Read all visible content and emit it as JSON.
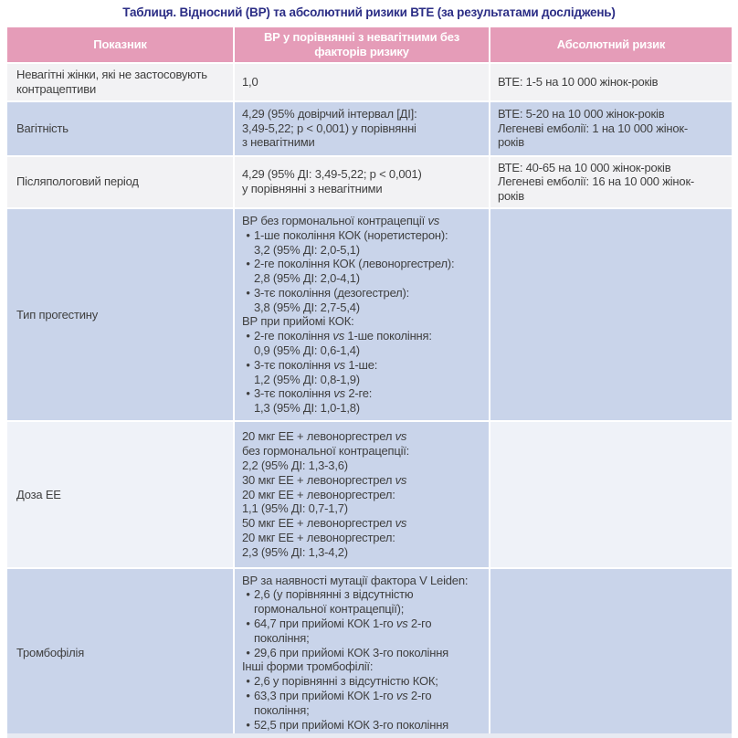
{
  "title": "Таблиця. Відносний (ВР) та абсолютний ризики ВТЕ (за результатами досліджень)",
  "colors": {
    "header_bg": "#e59cb8",
    "header_text": "#ffffff",
    "row_blue": "#c9d4ea",
    "row_light": "#f2f2f4",
    "row_light_cool": "#eff2f8",
    "title_text": "#2b2d85",
    "body_text": "#3f3f3f",
    "strip": "#e7eaf2"
  },
  "table": {
    "header": {
      "col1": "Показник",
      "col2": "ВР у порівнянні з невагітними без факторів ризику",
      "col3": "Абсолютний ризик"
    },
    "rows": [
      {
        "shade": "light",
        "indicator_lines": [
          "Невагітні жінки, які не застосовують",
          "контрацептиви"
        ],
        "relative": [
          {
            "bullet": false,
            "lines": [
              "1,0"
            ]
          }
        ],
        "absolute_lines": [
          "ВТЕ: 1-5 на 10 000 жінок-років"
        ]
      },
      {
        "shade": "blue",
        "indicator_lines": [
          "Вагітність"
        ],
        "relative": [
          {
            "bullet": false,
            "lines": [
              "4,29 (95% довірчий інтервал [ДІ]:",
              "3,49-5,22; p < 0,001) у порівнянні",
              "з невагітними"
            ]
          }
        ],
        "absolute_lines": [
          "ВТЕ: 5-20 на 10 000 жінок-років",
          "Легеневі емболії: 1 на 10 000 жінок-",
          "років"
        ]
      },
      {
        "shade": "light",
        "indicator_lines": [
          "Післяпологовий період"
        ],
        "relative": [
          {
            "bullet": false,
            "lines": [
              "4,29 (95% ДІ: 3,49-5,22; p < 0,001)",
              "у порівнянні з невагітними"
            ]
          }
        ],
        "absolute_lines": [
          "ВТЕ: 40-65 на 10 000 жінок-років",
          "Легеневі емболії: 16 на 10 000 жінок-",
          "років"
        ]
      },
      {
        "shade": "blue",
        "indicator_lines": [
          "Тип прогестину"
        ],
        "relative": [
          {
            "bullet": false,
            "lines": [
              "ВР без гормональної контрацепції vs"
            ]
          },
          {
            "bullet": true,
            "lines": [
              "1-ше покоління КОК (норетистерон):",
              "3,2 (95% ДІ: 2,0-5,1)"
            ]
          },
          {
            "bullet": true,
            "lines": [
              "2-ге покоління КОК (левоноргестрел):",
              "2,8 (95% ДІ: 2,0-4,1)"
            ]
          },
          {
            "bullet": true,
            "lines": [
              "3-тє покоління (дезогестрел):",
              "3,8 (95% ДІ: 2,7-5,4)"
            ]
          },
          {
            "bullet": false,
            "lines": [
              "ВР при прийомі КОК:"
            ]
          },
          {
            "bullet": true,
            "lines": [
              "2-ге покоління vs 1-ше покоління:",
              "0,9 (95% ДІ: 0,6-1,4)"
            ]
          },
          {
            "bullet": true,
            "lines": [
              "3-тє покоління vs 1-ше:",
              "1,2 (95% ДІ: 0,8-1,9)"
            ]
          },
          {
            "bullet": true,
            "lines": [
              "3-тє покоління vs 2-ге:",
              "1,3 (95% ДІ: 1,0-1,8)"
            ]
          }
        ],
        "absolute_lines": []
      },
      {
        "shade": "mixed",
        "indicator_lines": [
          "Доза ЕЕ"
        ],
        "relative": [
          {
            "bullet": false,
            "lines": [
              "20 мкг ЕЕ + левоноргестрел vs",
              "без гормональної контрацепції:",
              "2,2 (95% ДІ: 1,3-3,6)",
              "30 мкг ЕЕ + левоноргестрел vs",
              "20 мкг ЕЕ + левоноргестрел:",
              "1,1 (95% ДІ: 0,7-1,7)",
              "50 мкг ЕЕ + левоноргестрел vs",
              "20 мкг ЕЕ + левоноргестрел:",
              "2,3 (95% ДІ: 1,3-4,2)"
            ]
          }
        ],
        "absolute_lines": []
      },
      {
        "shade": "blue",
        "indicator_lines": [
          "Тромбофілія"
        ],
        "relative": [
          {
            "bullet": false,
            "lines": [
              "ВР за наявності мутації фактора V Leiden:"
            ]
          },
          {
            "bullet": true,
            "lines": [
              "2,6 (у порівнянні з відсутністю",
              "гормональної контрацепції);"
            ]
          },
          {
            "bullet": true,
            "lines": [
              "64,7 при прийомі КОК 1-го vs 2-го",
              "покоління;"
            ]
          },
          {
            "bullet": true,
            "lines": [
              "29,6 при прийомі КОК 3-го покоління"
            ]
          },
          {
            "bullet": false,
            "lines": [
              "Інші форми тромбофілії:"
            ]
          },
          {
            "bullet": true,
            "lines": [
              "2,6 у порівнянні з відсутністю КОК;"
            ]
          },
          {
            "bullet": true,
            "lines": [
              "63,3 при прийомі КОК 1-го vs 2-го",
              "покоління;"
            ]
          },
          {
            "bullet": true,
            "lines": [
              "52,5 при прийомі КОК 3-го покоління"
            ]
          }
        ],
        "absolute_lines": []
      }
    ]
  }
}
